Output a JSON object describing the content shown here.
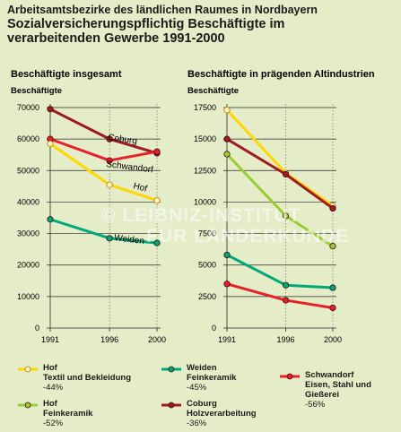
{
  "header": {
    "suptitle": "Arbeitsamtsbezirke des ländlichen Raumes in Nordbayern",
    "title_line1": "Sozialversicherungspflichtig Beschäftigte im",
    "title_line2": "verarbeitenden Gewerbe 1991-2000"
  },
  "watermark": {
    "line1": "© LEIBNIZ-INSTITUT",
    "line2": "FÜR LÄNDERKUNDE"
  },
  "colors": {
    "hof_textil": "#ffd700",
    "hof_feinkeramik": "#99cc33",
    "weiden": "#00a878",
    "coburg": "#a01820",
    "schwandorf": "#e8202a",
    "marker_fill_textil": "#fff4c0",
    "background": "#e4ecc8"
  },
  "chart_data": [
    {
      "type": "line",
      "title": "Beschäftigte insgesamt",
      "ylabel": "Beschäftigte",
      "x": [
        1991,
        1996,
        2000
      ],
      "xticks": [
        "1991",
        "1996",
        "2000"
      ],
      "ylim": [
        0,
        70000
      ],
      "yticks": [
        "0",
        "10000",
        "20000",
        "30000",
        "40000",
        "50000",
        "60000",
        "70000"
      ],
      "grid": "horizontal",
      "series": [
        {
          "name": "Coburg",
          "color_key": "coburg",
          "values": [
            69500,
            60000,
            55500
          ]
        },
        {
          "name": "Schwandorf",
          "color_key": "schwandorf",
          "values": [
            60000,
            53200,
            56000
          ]
        },
        {
          "name": "Hof",
          "color_key": "hof_textil",
          "values": [
            58500,
            45500,
            40500
          ]
        },
        {
          "name": "Weiden",
          "color_key": "weiden",
          "values": [
            34500,
            28500,
            27000
          ]
        }
      ]
    },
    {
      "type": "line",
      "title": "Beschäftigte in prägenden Altindustrien",
      "ylabel": "Beschäftigte",
      "x": [
        1991,
        1996,
        2000
      ],
      "xticks": [
        "1991",
        "1996",
        "2000"
      ],
      "ylim": [
        0,
        17500
      ],
      "yticks": [
        "0",
        "2500",
        "5000",
        "7500",
        "10000",
        "12500",
        "15000",
        "17500"
      ],
      "grid": "horizontal",
      "series": [
        {
          "name": "Hof Textil und Bekleidung",
          "color_key": "hof_textil",
          "values": [
            17300,
            12300,
            9700
          ]
        },
        {
          "name": "Coburg Holzverarbeitung",
          "color_key": "coburg",
          "values": [
            15000,
            12200,
            9500
          ]
        },
        {
          "name": "Hof Feinkeramik",
          "color_key": "hof_feinkeramik",
          "values": [
            13800,
            8900,
            6500
          ]
        },
        {
          "name": "Weiden Feinkeramik",
          "color_key": "weiden",
          "values": [
            5800,
            3400,
            3200
          ]
        },
        {
          "name": "Schwandorf Eisen, Stahl und Gießerei",
          "color_key": "schwandorf",
          "values": [
            3500,
            2200,
            1600
          ]
        }
      ]
    }
  ],
  "legend": [
    {
      "name": "Hof",
      "detail": "Textil und Bekleidung",
      "pct": "-44%",
      "color_key": "hof_textil"
    },
    {
      "name": "Weiden",
      "detail": "Feinkeramik",
      "pct": "-45%",
      "color_key": "weiden"
    },
    {
      "name": "Schwandorf",
      "detail": "Eisen, Stahl und Gießerei",
      "pct": "-56%",
      "color_key": "schwandorf"
    },
    {
      "name": "Hof",
      "detail": "Feinkeramik",
      "pct": "-52%",
      "color_key": "hof_feinkeramik"
    },
    {
      "name": "Coburg",
      "detail": "Holzverarbeitung",
      "pct": "-36%",
      "color_key": "coburg"
    }
  ]
}
